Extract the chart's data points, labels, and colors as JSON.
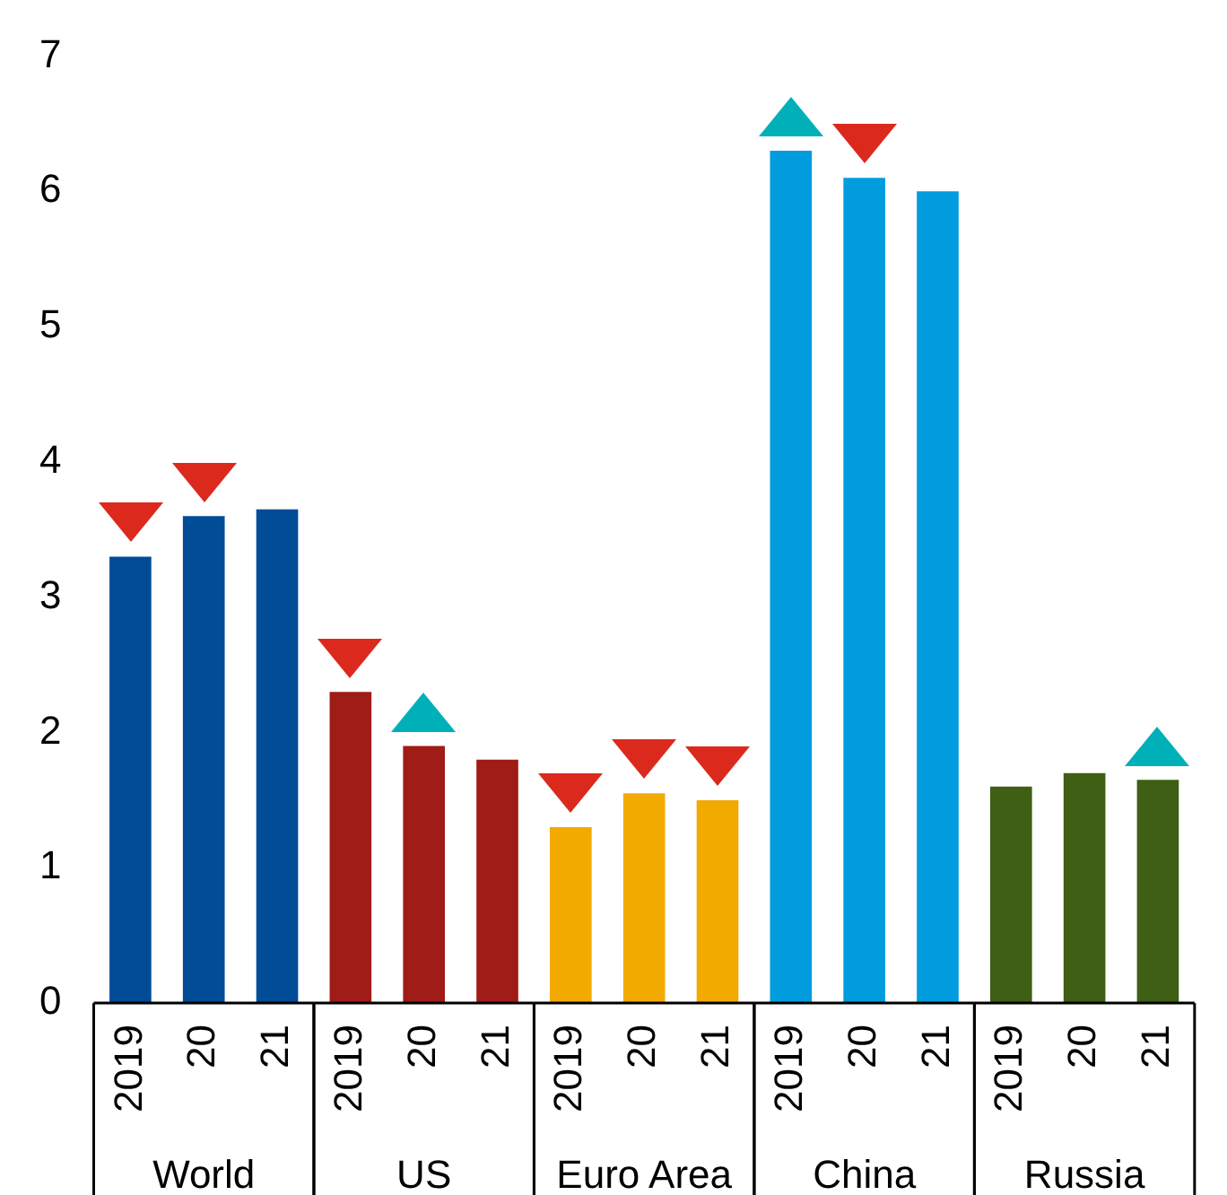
{
  "chart_data": {
    "type": "bar",
    "categories": [
      "2019",
      "20",
      "21",
      "2019",
      "20",
      "21",
      "2019",
      "20",
      "21",
      "2019",
      "20",
      "21",
      "2019",
      "20",
      "21"
    ],
    "series": [
      {
        "color": "#004c97",
        "values": [
          3.3,
          3.6,
          3.65,
          null,
          null,
          null,
          null,
          null,
          null,
          null,
          null,
          null,
          null,
          null,
          null
        ]
      },
      {
        "color": "#a01c17",
        "values": [
          null,
          null,
          null,
          2.3,
          1.9,
          1.8,
          null,
          null,
          null,
          null,
          null,
          null,
          null,
          null,
          null
        ]
      },
      {
        "color": "#f2a900",
        "values": [
          null,
          null,
          null,
          null,
          null,
          null,
          1.3,
          1.55,
          1.5,
          null,
          null,
          null,
          null,
          null,
          null
        ]
      },
      {
        "color": "#009cde",
        "values": [
          null,
          null,
          null,
          null,
          null,
          null,
          null,
          null,
          null,
          6.3,
          6.1,
          6.0,
          null,
          null,
          null
        ]
      },
      {
        "color": "#3e5f14",
        "values": [
          null,
          null,
          null,
          null,
          null,
          null,
          null,
          null,
          null,
          null,
          null,
          null,
          1.6,
          1.7,
          1.65
        ]
      }
    ],
    "annotations": [
      "World",
      "US",
      "Euro Area",
      "China",
      "Russia"
    ],
    "ylim": [
      0,
      7
    ],
    "yticks": [
      0,
      1,
      2,
      3,
      4,
      5,
      6,
      7
    ],
    "grid": false,
    "legend": false
  }
}
